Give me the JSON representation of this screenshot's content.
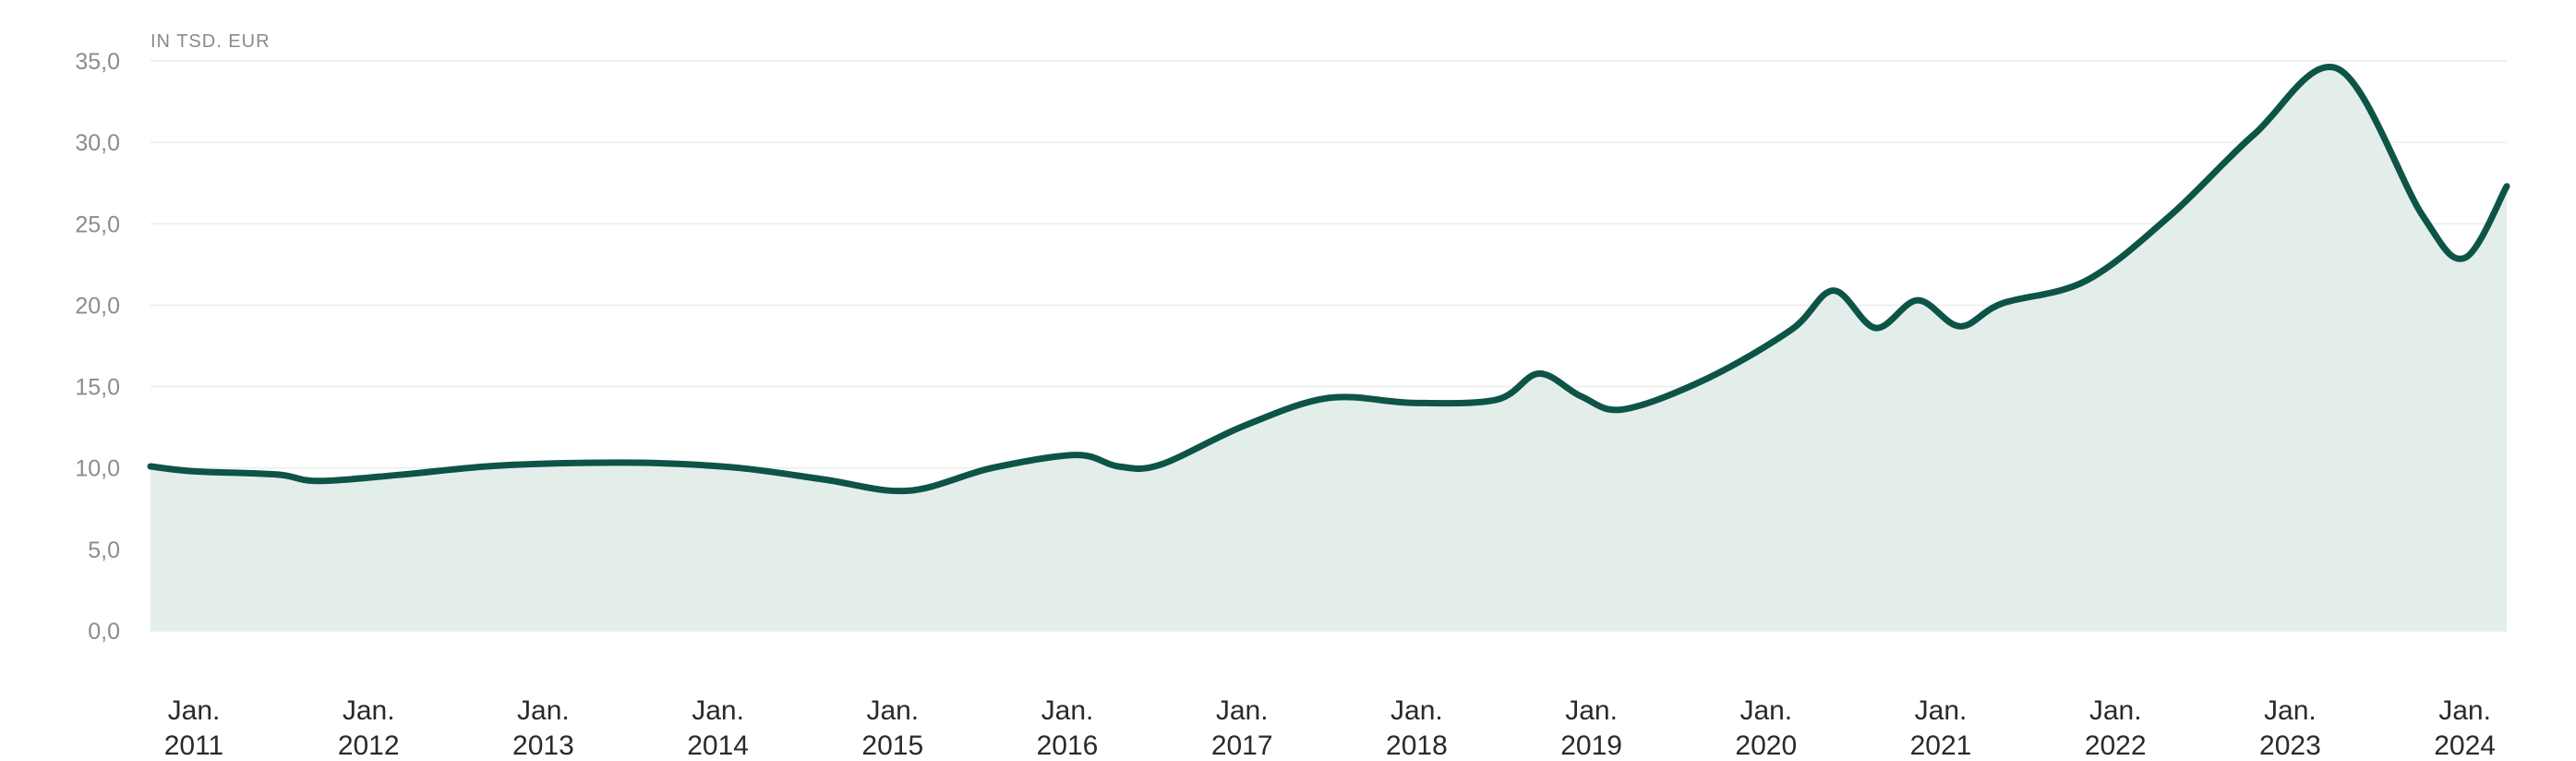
{
  "chart_data": {
    "type": "area",
    "unit_label": "IN TSD. EUR",
    "ylim": [
      0,
      35
    ],
    "y_ticks": [
      "35,0",
      "30,0",
      "25,0",
      "20,0",
      "15,0",
      "10,0",
      "5,0",
      "0,0"
    ],
    "x_ticks": [
      {
        "month": "Jan.",
        "year": "2011"
      },
      {
        "month": "Jan.",
        "year": "2012"
      },
      {
        "month": "Jan.",
        "year": "2013"
      },
      {
        "month": "Jan.",
        "year": "2014"
      },
      {
        "month": "Jan.",
        "year": "2015"
      },
      {
        "month": "Jan.",
        "year": "2016"
      },
      {
        "month": "Jan.",
        "year": "2017"
      },
      {
        "month": "Jan.",
        "year": "2018"
      },
      {
        "month": "Jan.",
        "year": "2019"
      },
      {
        "month": "Jan.",
        "year": "2020"
      },
      {
        "month": "Jan.",
        "year": "2021"
      },
      {
        "month": "Jan.",
        "year": "2022"
      },
      {
        "month": "Jan.",
        "year": "2023"
      },
      {
        "month": "Jan.",
        "year": "2024"
      }
    ],
    "grid": true,
    "legend": "none",
    "colors": {
      "line": "#0d5447",
      "area": "#e3eeeb"
    },
    "series": [
      {
        "points": [
          {
            "x": "2011-01",
            "y": 10.1
          },
          {
            "x": "2011-04",
            "y": 9.8
          },
          {
            "x": "2011-10",
            "y": 9.6
          },
          {
            "x": "2012-01",
            "y": 9.2
          },
          {
            "x": "2012-07",
            "y": 9.6
          },
          {
            "x": "2013-01",
            "y": 10.1
          },
          {
            "x": "2013-07",
            "y": 10.3
          },
          {
            "x": "2014-01",
            "y": 10.3
          },
          {
            "x": "2014-07",
            "y": 10.0
          },
          {
            "x": "2015-01",
            "y": 9.3
          },
          {
            "x": "2015-07",
            "y": 8.6
          },
          {
            "x": "2016-01",
            "y": 10.0
          },
          {
            "x": "2016-07",
            "y": 10.8
          },
          {
            "x": "2016-10",
            "y": 10.1
          },
          {
            "x": "2017-01",
            "y": 10.2
          },
          {
            "x": "2017-07",
            "y": 12.6
          },
          {
            "x": "2018-01",
            "y": 14.3
          },
          {
            "x": "2018-07",
            "y": 14.0
          },
          {
            "x": "2019-01",
            "y": 14.2
          },
          {
            "x": "2019-04",
            "y": 15.8
          },
          {
            "x": "2019-07",
            "y": 14.4
          },
          {
            "x": "2019-10",
            "y": 13.6
          },
          {
            "x": "2020-04",
            "y": 15.5
          },
          {
            "x": "2020-10",
            "y": 18.5
          },
          {
            "x": "2021-01",
            "y": 20.9
          },
          {
            "x": "2021-04",
            "y": 18.6
          },
          {
            "x": "2021-07",
            "y": 20.3
          },
          {
            "x": "2021-10",
            "y": 18.7
          },
          {
            "x": "2022-01",
            "y": 20.1
          },
          {
            "x": "2022-07",
            "y": 21.5
          },
          {
            "x": "2023-01",
            "y": 25.5
          },
          {
            "x": "2023-07",
            "y": 30.5
          },
          {
            "x": "2024-01",
            "y": 34.5
          },
          {
            "x": "2024-07",
            "y": 25.5
          },
          {
            "x": "2024-10",
            "y": 22.9
          },
          {
            "x": "2025-01",
            "y": 27.3
          }
        ]
      }
    ]
  }
}
